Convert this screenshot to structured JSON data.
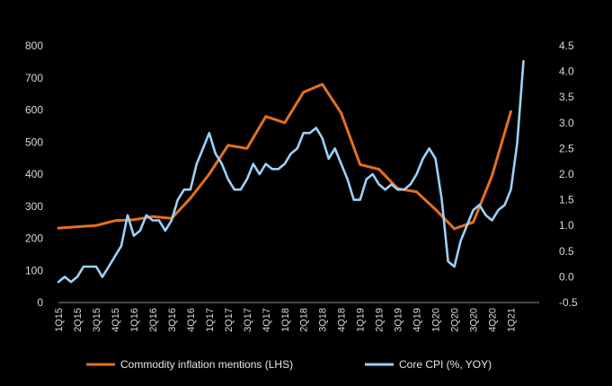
{
  "chart_data": {
    "type": "line",
    "title": "",
    "grid": false,
    "legend_position": "bottom",
    "x_ticks": [
      "1Q15",
      "2Q15",
      "3Q15",
      "4Q15",
      "1Q16",
      "2Q16",
      "3Q16",
      "4Q16",
      "1Q17",
      "2Q17",
      "3Q17",
      "4Q17",
      "1Q18",
      "2Q18",
      "3Q18",
      "4Q18",
      "1Q19",
      "2Q19",
      "3Q19",
      "4Q19",
      "1Q20",
      "2Q20",
      "3Q20",
      "4Q20",
      "1Q21"
    ],
    "x_range": [
      2015.0,
      2021.375
    ],
    "y_left": {
      "range": [
        0,
        800
      ],
      "ticks": [
        "0",
        "100",
        "200",
        "300",
        "400",
        "500",
        "600",
        "700",
        "800"
      ]
    },
    "y_right": {
      "range": [
        -0.5,
        4.5
      ],
      "ticks": [
        "-0.5",
        "0.0",
        "0.5",
        "1.0",
        "1.5",
        "2.0",
        "2.5",
        "3.0",
        "3.5",
        "4.0",
        "4.5"
      ]
    },
    "series": [
      {
        "name": "Commodity inflation mentions (LHS)",
        "axis": "left",
        "color": "#e3701e",
        "x": [
          2015.0,
          2015.25,
          2015.5,
          2015.75,
          2016.0,
          2016.25,
          2016.5,
          2016.75,
          2017.0,
          2017.25,
          2017.5,
          2017.75,
          2018.0,
          2018.25,
          2018.5,
          2018.75,
          2019.0,
          2019.25,
          2019.5,
          2019.75,
          2020.0,
          2020.25,
          2020.5,
          2020.75,
          2021.0
        ],
        "values": [
          232,
          236,
          240,
          255,
          258,
          268,
          262,
          325,
          400,
          490,
          480,
          580,
          560,
          655,
          680,
          590,
          430,
          415,
          355,
          345,
          290,
          230,
          250,
          395,
          595
        ]
      },
      {
        "name": "Core CPI (%, YOY)",
        "axis": "right",
        "color": "#9fd0f7",
        "x": [
          2015.0,
          2015.083,
          2015.167,
          2015.25,
          2015.333,
          2015.417,
          2015.5,
          2015.583,
          2015.667,
          2015.75,
          2015.833,
          2015.917,
          2016.0,
          2016.083,
          2016.167,
          2016.25,
          2016.333,
          2016.417,
          2016.5,
          2016.583,
          2016.667,
          2016.75,
          2016.833,
          2016.917,
          2017.0,
          2017.083,
          2017.167,
          2017.25,
          2017.333,
          2017.417,
          2017.5,
          2017.583,
          2017.667,
          2017.75,
          2017.833,
          2017.917,
          2018.0,
          2018.083,
          2018.167,
          2018.25,
          2018.333,
          2018.417,
          2018.5,
          2018.583,
          2018.667,
          2018.75,
          2018.833,
          2018.917,
          2019.0,
          2019.083,
          2019.167,
          2019.25,
          2019.333,
          2019.417,
          2019.5,
          2019.583,
          2019.667,
          2019.75,
          2019.833,
          2019.917,
          2020.0,
          2020.083,
          2020.167,
          2020.25,
          2020.333,
          2020.417,
          2020.5,
          2020.583,
          2020.667,
          2020.75,
          2020.833,
          2020.917,
          2021.0,
          2021.083,
          2021.167
        ],
        "values": [
          -0.1,
          0.0,
          -0.1,
          0.0,
          0.2,
          0.2,
          0.2,
          0.0,
          0.2,
          0.4,
          0.6,
          1.2,
          0.8,
          0.9,
          1.2,
          1.1,
          1.1,
          0.9,
          1.1,
          1.5,
          1.7,
          1.7,
          2.2,
          2.5,
          2.8,
          2.4,
          2.2,
          1.9,
          1.7,
          1.7,
          1.9,
          2.2,
          2.0,
          2.2,
          2.1,
          2.1,
          2.2,
          2.4,
          2.5,
          2.8,
          2.8,
          2.9,
          2.7,
          2.3,
          2.5,
          2.2,
          1.9,
          1.5,
          1.5,
          1.9,
          2.0,
          1.8,
          1.7,
          1.8,
          1.7,
          1.7,
          1.8,
          2.0,
          2.3,
          2.5,
          2.3,
          1.5,
          0.3,
          0.2,
          0.7,
          1.0,
          1.3,
          1.4,
          1.2,
          1.1,
          1.3,
          1.4,
          1.7,
          2.6,
          4.2
        ]
      }
    ]
  }
}
